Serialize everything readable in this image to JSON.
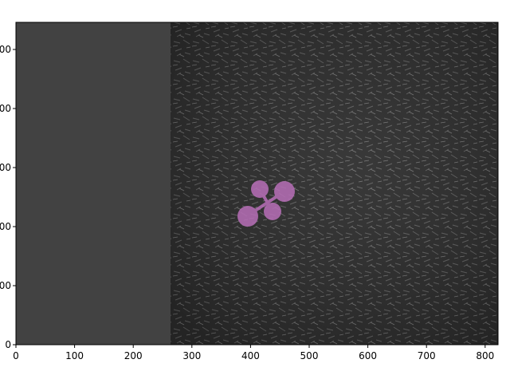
{
  "figure": {
    "x_ticks": [
      "0",
      "100",
      "200",
      "300",
      "400",
      "500",
      "600",
      "700",
      "800"
    ],
    "y_ticks_visible": [
      "00",
      "00",
      "00",
      "00",
      "00",
      "0"
    ],
    "x_range": [
      0,
      822
    ],
    "y_range_inverted": true,
    "mask_region_color": "#424242",
    "overlay_color": "#b86fb8",
    "image_description_icon": "soil-photo-with-plant-seedling"
  }
}
